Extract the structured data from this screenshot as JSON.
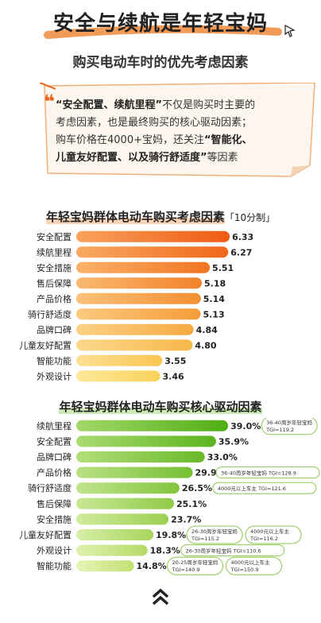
{
  "title": "安全与续航是年轻宝妈",
  "subtitle": "购买电动车时的优先考虑因素",
  "note": {
    "part1": "“安全配置、续航里程”",
    "part2": "不仅是购买时主要的",
    "line2": "考虑因素，也是最终购买的核心驱动因素；",
    "line3_a": "购车价格在4000+宝妈，还关注",
    "line3_b": "“智能化、",
    "line4_a": "儿童友好配置、以及骑行舒适度”",
    "line4_b": "等因素"
  },
  "colors": {
    "accent_orange": "#E8631C",
    "accent_green": "#5BB61E"
  },
  "chart_data": [
    {
      "type": "bar",
      "title": "年轻宝妈群体电动车购买考虑因素",
      "unit": "「10分制」",
      "categories": [
        "安全配置",
        "续航里程",
        "安全措施",
        "售后保障",
        "产品价格",
        "骑行舒适度",
        "品牌口碑",
        "儿童友好配置",
        "智能功能",
        "外观设计"
      ],
      "values": [
        6.33,
        6.27,
        5.51,
        5.18,
        5.14,
        5.13,
        4.84,
        4.8,
        3.55,
        3.46
      ],
      "value_labels": [
        "6.33",
        "6.27",
        "5.51",
        "5.18",
        "5.14",
        "5.13",
        "4.84",
        "4.80",
        "3.55",
        "3.46"
      ]
    },
    {
      "type": "bar",
      "title": "年轻宝妈群体电动车购买核心驱动因素",
      "categories": [
        "续航里程",
        "安全配置",
        "品牌口碑",
        "产品价格",
        "骑行舒适度",
        "售后保障",
        "安全措施",
        "儿童友好配置",
        "外观设计",
        "智能功能"
      ],
      "values": [
        39.0,
        35.9,
        33.0,
        29.9,
        26.5,
        25.1,
        23.7,
        19.8,
        18.3,
        14.8
      ],
      "value_labels": [
        "39.0%",
        "35.9%",
        "33.0%",
        "29.9%",
        "26.5%",
        "25.1%",
        "23.7%",
        "19.8%",
        "18.3%",
        "14.8%"
      ],
      "annotations": [
        {
          "row": 0,
          "lines": [
            "36-40周岁年轻宝妈",
            "TGI=119.2"
          ]
        },
        {
          "row": 3,
          "lines": [
            "36-40周岁年轻宝妈 TGI=128.9"
          ]
        },
        {
          "row": 4,
          "lines": [
            "4000元以上车主 TGI=121.6"
          ]
        },
        {
          "row": 7,
          "lines": [
            "26-30周岁年轻宝妈",
            "TGI=115.2"
          ]
        },
        {
          "row": 7,
          "lines": [
            "4000元以上车主",
            "TGI=116.2"
          ]
        },
        {
          "row": 8,
          "lines": [
            "26-30周岁年轻宝妈 TGI=110.6"
          ]
        },
        {
          "row": 9,
          "lines": [
            "20-25周岁年轻宝妈",
            "TGI=140.9"
          ]
        },
        {
          "row": 9,
          "lines": [
            "4000元以上车主",
            "TGI=150.9"
          ]
        }
      ]
    }
  ]
}
